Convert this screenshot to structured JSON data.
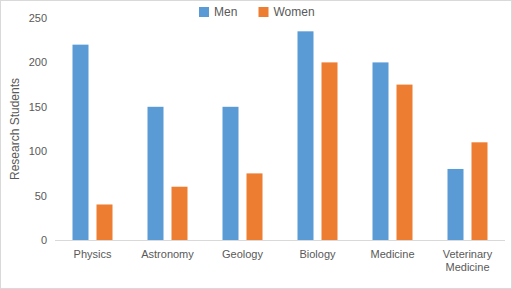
{
  "chart_data": {
    "type": "bar",
    "categories": [
      "Physics",
      "Astronomy",
      "Geology",
      "Biology",
      "Medicine",
      "Veterinary Medicine"
    ],
    "series": [
      {
        "name": "Men",
        "color": "#5b9bd5",
        "values": [
          220,
          150,
          150,
          235,
          200,
          80
        ]
      },
      {
        "name": "Women",
        "color": "#ed7d31",
        "values": [
          40,
          60,
          75,
          200,
          175,
          110
        ]
      }
    ],
    "y_label": "Research Students",
    "ylim": [
      0,
      250
    ],
    "yticks": [
      0,
      50,
      100,
      150,
      200,
      250
    ],
    "grid": false,
    "legend": "top"
  }
}
